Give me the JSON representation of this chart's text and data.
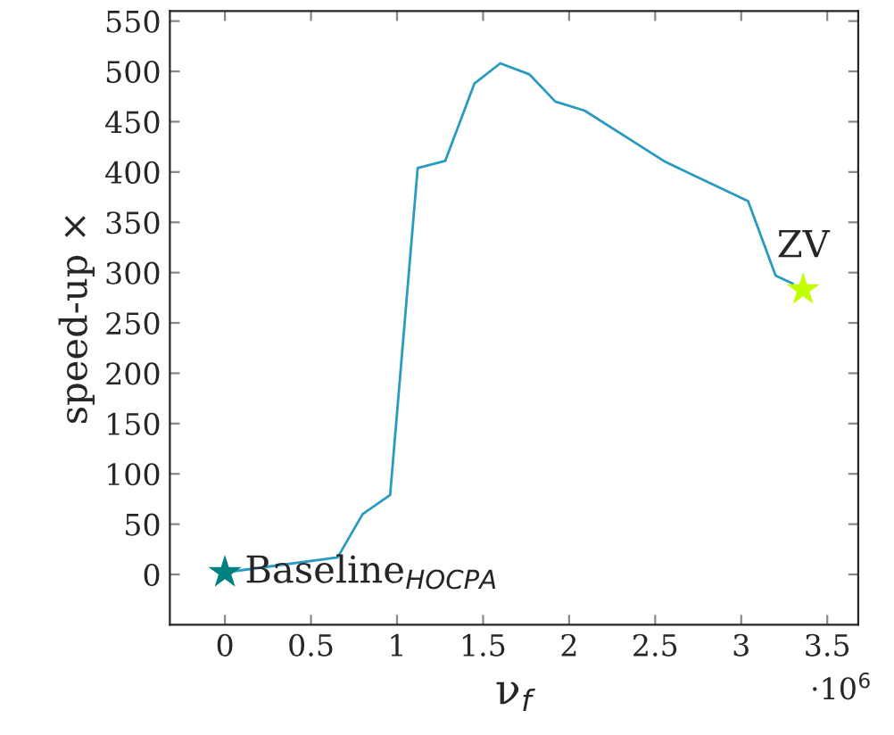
{
  "chart_data": {
    "type": "line",
    "xlabel": "ν$_{f}$",
    "ylabel": "speed-up ×",
    "xlim": [
      -0.32,
      3.68
    ],
    "xticks": [
      0,
      0.5,
      1,
      1.5,
      2,
      2.5,
      3,
      3.5
    ],
    "ylim": [
      -50,
      560
    ],
    "yticks": [
      0,
      50,
      100,
      150,
      200,
      250,
      300,
      350,
      400,
      450,
      500,
      550
    ],
    "grid": false,
    "legend": false,
    "annotations": [
      "·10$^{6}$"
    ],
    "series": [
      {
        "color": "#2a9bc0",
        "marker": "none",
        "x": [
          0,
          0.655,
          0.8,
          0.96,
          1.12,
          1.28,
          1.45,
          1.6,
          1.77,
          1.92,
          2.09,
          2.56,
          3.04,
          3.2,
          3.3
        ],
        "values": [
          2,
          17,
          60,
          79,
          404,
          411,
          488,
          508,
          497,
          470,
          461,
          410,
          371,
          297,
          289
        ]
      },
      {
        "type": "scatter",
        "name": "Baseline$_{HOCPA}$",
        "color": "#008080",
        "marker": "star",
        "x": [
          0
        ],
        "values": [
          2
        ]
      },
      {
        "type": "scatter",
        "name": "ZV",
        "color": "#bfff00",
        "marker": "star",
        "x": [
          3.36
        ],
        "values": [
          283
        ]
      }
    ]
  }
}
